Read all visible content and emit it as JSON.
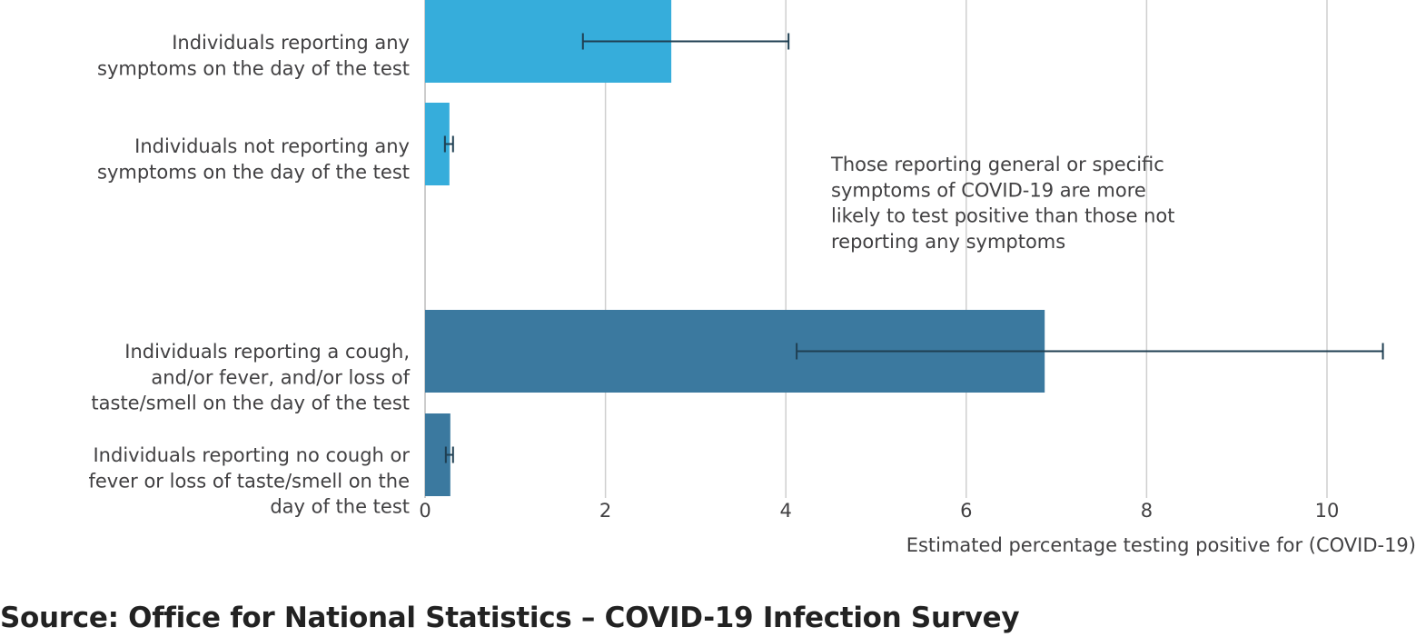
{
  "chart_data": {
    "type": "bar",
    "orientation": "horizontal",
    "categories": [
      [
        "Individuals reporting any",
        "symptoms on the day of the test"
      ],
      [
        "Individuals not reporting any",
        "symptoms on the day of the test"
      ],
      [
        "Individuals reporting a cough,",
        "and/or fever, and/or loss of",
        "taste/smell on the day of the test"
      ],
      [
        "Individuals reporting no cough or",
        "fever or loss of taste/smell on the",
        "day of the test"
      ]
    ],
    "values": [
      2.73,
      0.27,
      6.87,
      0.28
    ],
    "error_low": [
      1.75,
      0.22,
      4.12,
      0.23
    ],
    "error_high": [
      4.03,
      0.31,
      10.62,
      0.31
    ],
    "bar_colors": [
      "#36addb",
      "#36addb",
      "#3b799f",
      "#3b799f"
    ],
    "error_bar_color": "#1f3f52",
    "xlabel": "Estimated percentage testing positive for (COVID-19)",
    "xlim": [
      0,
      11
    ],
    "xticks": [
      "0",
      "2",
      "4",
      "6",
      "8",
      "10"
    ],
    "grid": true,
    "annotation": [
      "Those reporting general or specific",
      "symptoms of COVID-19 are more",
      "likely to test positive than those not",
      "reporting any symptoms"
    ]
  },
  "source": "Source: Office for National Statistics – COVID-19 Infection Survey"
}
